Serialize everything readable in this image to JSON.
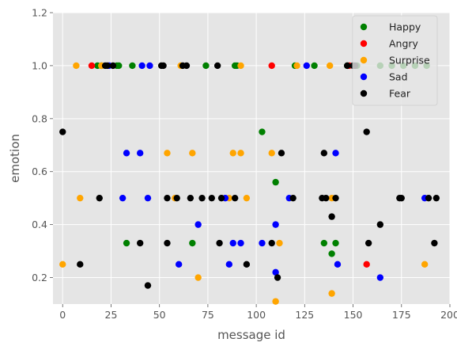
{
  "chart_data": {
    "type": "scatter",
    "xlabel": "message id",
    "ylabel": "emotion",
    "xlim": [
      -5,
      200
    ],
    "ylim": [
      0.1,
      1.2
    ],
    "xticks": [
      0,
      25,
      50,
      75,
      100,
      125,
      150,
      175,
      200
    ],
    "xtick_labels": [
      "0",
      "25",
      "50",
      "75",
      "100",
      "125",
      "150",
      "175",
      "200"
    ],
    "yticks": [
      0.2,
      0.4,
      0.6,
      0.8,
      1.0,
      1.2
    ],
    "ytick_labels": [
      "0.2",
      "0.4",
      "0.6",
      "0.8",
      "1.0",
      "1.2"
    ],
    "grid": true,
    "background": "#e5e5e5",
    "legend_position": "top-right",
    "series": [
      {
        "name": "Happy",
        "color": "#008000",
        "points": [
          [
            18,
            1.0
          ],
          [
            20,
            1.0
          ],
          [
            28,
            1.0
          ],
          [
            29,
            1.0
          ],
          [
            36,
            1.0
          ],
          [
            74,
            1.0
          ],
          [
            89,
            1.0
          ],
          [
            90,
            1.0
          ],
          [
            103,
            0.75
          ],
          [
            110,
            0.56
          ],
          [
            120,
            1.0
          ],
          [
            130,
            1.0
          ],
          [
            147,
            1.0
          ],
          [
            152,
            1.0
          ],
          [
            164,
            1.0
          ],
          [
            170,
            1.0
          ],
          [
            176,
            1.0
          ],
          [
            182,
            1.0
          ],
          [
            188,
            1.0
          ],
          [
            33,
            0.33
          ],
          [
            67,
            0.33
          ],
          [
            135,
            0.33
          ],
          [
            141,
            0.33
          ],
          [
            139,
            0.29
          ]
        ]
      },
      {
        "name": "Angry",
        "color": "#ff0000",
        "points": [
          [
            15,
            1.0
          ],
          [
            108,
            1.0
          ],
          [
            148,
            1.0
          ],
          [
            157,
            0.25
          ]
        ]
      },
      {
        "name": "Surprise",
        "color": "#ffa500",
        "points": [
          [
            7,
            1.0
          ],
          [
            20,
            1.0
          ],
          [
            61,
            1.0
          ],
          [
            92,
            1.0
          ],
          [
            121,
            1.0
          ],
          [
            138,
            1.0
          ],
          [
            54,
            0.67
          ],
          [
            67,
            0.67
          ],
          [
            88,
            0.67
          ],
          [
            92,
            0.67
          ],
          [
            108,
            0.67
          ],
          [
            9,
            0.5
          ],
          [
            58,
            0.5
          ],
          [
            86,
            0.5
          ],
          [
            95,
            0.5
          ],
          [
            139,
            0.5
          ],
          [
            112,
            0.33
          ],
          [
            0,
            0.25
          ],
          [
            70,
            0.2
          ],
          [
            110,
            0.11
          ],
          [
            139,
            0.14
          ],
          [
            187,
            0.25
          ]
        ]
      },
      {
        "name": "Sad",
        "color": "#0000ff",
        "points": [
          [
            24,
            1.0
          ],
          [
            41,
            1.0
          ],
          [
            45,
            1.0
          ],
          [
            126,
            1.0
          ],
          [
            33,
            0.67
          ],
          [
            40,
            0.67
          ],
          [
            141,
            0.67
          ],
          [
            31,
            0.5
          ],
          [
            44,
            0.5
          ],
          [
            84,
            0.5
          ],
          [
            117,
            0.5
          ],
          [
            187,
            0.5
          ],
          [
            70,
            0.4
          ],
          [
            110,
            0.4
          ],
          [
            60,
            0.25
          ],
          [
            86,
            0.25
          ],
          [
            88,
            0.33
          ],
          [
            92,
            0.33
          ],
          [
            103,
            0.33
          ],
          [
            110,
            0.22
          ],
          [
            142,
            0.25
          ],
          [
            164,
            0.2
          ]
        ]
      },
      {
        "name": "Fear",
        "color": "#000000",
        "points": [
          [
            0,
            0.75
          ],
          [
            22,
            1.0
          ],
          [
            23,
            1.0
          ],
          [
            26,
            1.0
          ],
          [
            51,
            1.0
          ],
          [
            52,
            1.0
          ],
          [
            62,
            1.0
          ],
          [
            64,
            1.0
          ],
          [
            80,
            1.0
          ],
          [
            147,
            1.0
          ],
          [
            150,
            1.0
          ],
          [
            151,
            1.0
          ],
          [
            19,
            0.5
          ],
          [
            54,
            0.5
          ],
          [
            59,
            0.5
          ],
          [
            66,
            0.5
          ],
          [
            72,
            0.5
          ],
          [
            77,
            0.5
          ],
          [
            82,
            0.5
          ],
          [
            89,
            0.5
          ],
          [
            119,
            0.5
          ],
          [
            134,
            0.5
          ],
          [
            136,
            0.5
          ],
          [
            141,
            0.5
          ],
          [
            174,
            0.5
          ],
          [
            175,
            0.5
          ],
          [
            189,
            0.5
          ],
          [
            193,
            0.5
          ],
          [
            113,
            0.67
          ],
          [
            135,
            0.67
          ],
          [
            139,
            0.43
          ],
          [
            157,
            0.75
          ],
          [
            9,
            0.25
          ],
          [
            40,
            0.33
          ],
          [
            54,
            0.33
          ],
          [
            81,
            0.33
          ],
          [
            95,
            0.25
          ],
          [
            108,
            0.33
          ],
          [
            111,
            0.2
          ],
          [
            44,
            0.17
          ],
          [
            158,
            0.33
          ],
          [
            164,
            0.4
          ],
          [
            192,
            0.33
          ]
        ]
      }
    ]
  }
}
